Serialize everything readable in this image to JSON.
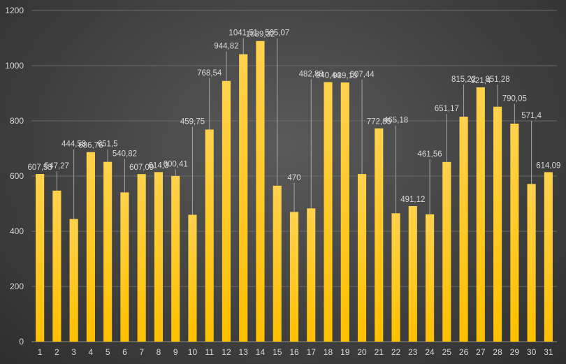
{
  "chart_data": {
    "type": "bar",
    "title": "",
    "xlabel": "",
    "ylabel": "",
    "ylim": [
      0,
      1200
    ],
    "y_ticks": [
      "0",
      "200",
      "400",
      "600",
      "800",
      "1000",
      "1200"
    ],
    "grid": true,
    "legend": "none",
    "categories": [
      "1",
      "2",
      "3",
      "4",
      "5",
      "6",
      "7",
      "8",
      "9",
      "10",
      "11",
      "12",
      "13",
      "14",
      "15",
      "16",
      "17",
      "18",
      "19",
      "20",
      "21",
      "22",
      "23",
      "24",
      "25",
      "26",
      "27",
      "28",
      "29",
      "30",
      "31"
    ],
    "values": [
      607.53,
      547.27,
      444.58,
      686.76,
      651.5,
      540.82,
      607.09,
      614.3,
      600.41,
      459.75,
      768.54,
      944.82,
      1041.51,
      1089.32,
      565.07,
      470,
      482.88,
      940.44,
      939.13,
      607.44,
      772.85,
      465.18,
      491.12,
      461.56,
      651.17,
      815.22,
      921.4,
      851.28,
      790.05,
      571.4,
      614.09
    ],
    "data_labels": [
      "607,53",
      "547,27",
      "444,58",
      "686,76",
      "651,5",
      "540,82",
      "607,09",
      "614,3",
      "600,41",
      "459,75",
      "768,54",
      "944,82",
      "1041,51",
      "1089,32",
      "565,07",
      "470",
      "482,88",
      "940,44",
      "939,13",
      "607,44",
      "772,85",
      "465,18",
      "491,12",
      "461,56",
      "651,17",
      "815,22",
      "921,4",
      "851,28",
      "790,05",
      "571,4",
      "614,09"
    ],
    "colors": {
      "bar_top": "#ffd24d",
      "bar_bottom": "#ffc000",
      "background": "#404040",
      "grid": "#6a6a6a",
      "text": "#d9d9d9"
    }
  }
}
